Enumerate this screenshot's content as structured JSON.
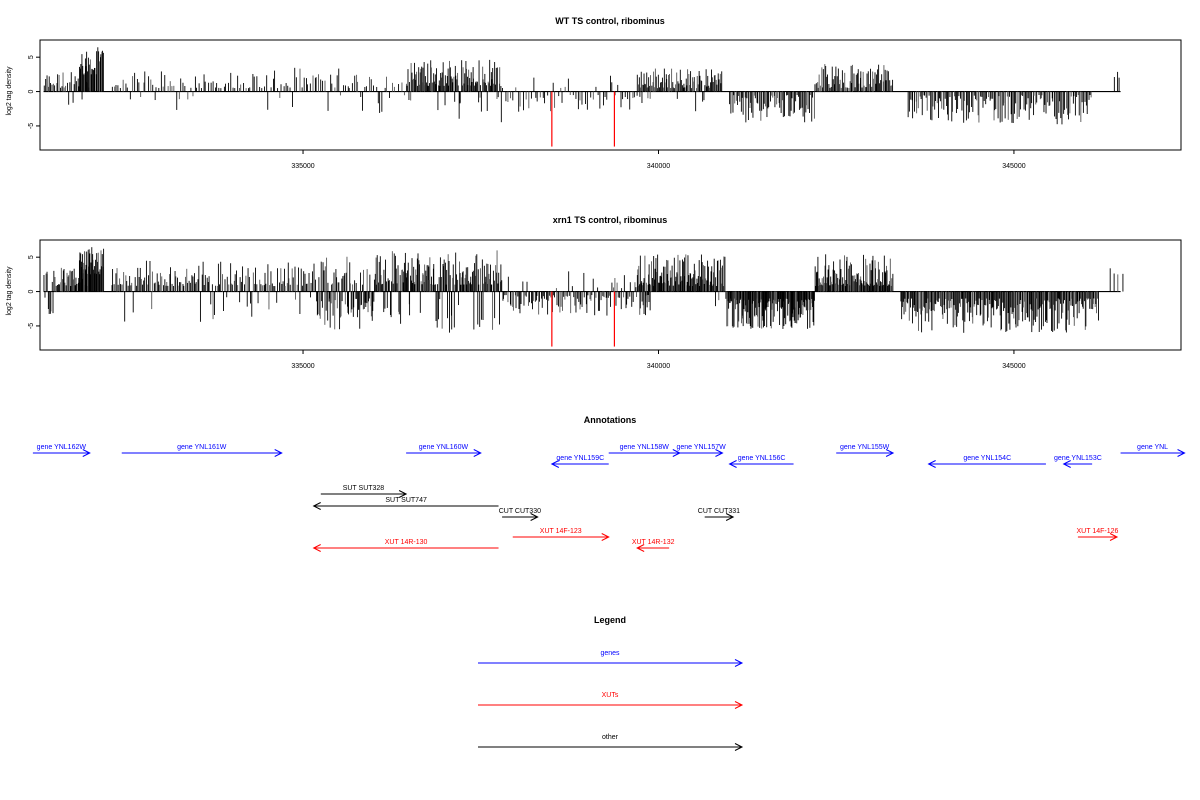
{
  "chart_data": [
    {
      "type": "bar",
      "title": "WT TS control, ribominus",
      "ylabel": "log2 tag density",
      "xlabel": "",
      "xlim": [
        331300,
        347350
      ],
      "ylim": [
        -8.5,
        7.5
      ],
      "x_ticks": [
        335000,
        340000,
        345000
      ],
      "x_tick_labels": [
        "335000",
        "340000",
        "345000"
      ],
      "y_ticks": [
        -5,
        0,
        5
      ],
      "y_tick_labels": [
        "-5",
        "0",
        "5"
      ],
      "grid": false,
      "colors": {
        "bars": "#000000",
        "highlight": "#ff0000"
      },
      "highlight_positions": [
        338500,
        339380
      ],
      "highlight_values": [
        -8.0,
        -8.0
      ],
      "segments": [
        {
          "x0": 331350,
          "x1": 332000,
          "count": 34,
          "lo": 0.5,
          "hi": 3.0,
          "p": 0.05
        },
        {
          "x0": 331850,
          "x1": 332200,
          "count": 30,
          "lo": 2.5,
          "hi": 6.5,
          "p": 0.0
        },
        {
          "x0": 332300,
          "x1": 334500,
          "count": 70,
          "lo": 0.5,
          "hi": 3.0,
          "p": 0.08
        },
        {
          "x0": 334500,
          "x1": 336200,
          "count": 55,
          "lo": 0.5,
          "hi": 3.5,
          "p": 0.2
        },
        {
          "x0": 336200,
          "x1": 336450,
          "count": 6,
          "lo": 0.5,
          "hi": 1.5,
          "p": 0.4
        },
        {
          "x0": 336450,
          "x1": 337800,
          "count": 120,
          "lo": 0.8,
          "hi": 4.8,
          "p": 0.08
        },
        {
          "x0": 337800,
          "x1": 339900,
          "count": 60,
          "lo": 0.5,
          "hi": 3.0,
          "p": 0.8
        },
        {
          "x0": 339700,
          "x1": 340900,
          "count": 90,
          "lo": 0.5,
          "hi": 3.5,
          "p": 0.05
        },
        {
          "x0": 341000,
          "x1": 342200,
          "count": 70,
          "lo": 0.5,
          "hi": 4.5,
          "p": 1.0
        },
        {
          "x0": 342200,
          "x1": 343300,
          "count": 75,
          "lo": 0.5,
          "hi": 4.0,
          "p": 0.0
        },
        {
          "x0": 343500,
          "x1": 346100,
          "count": 140,
          "lo": 0.5,
          "hi": 4.8,
          "p": 1.0
        },
        {
          "x0": 346400,
          "x1": 346500,
          "count": 3,
          "lo": 2.0,
          "hi": 3.0,
          "p": 0.0
        }
      ]
    },
    {
      "type": "bar",
      "title": "xrn1 TS control, ribominus",
      "ylabel": "log2 tag density",
      "xlabel": "",
      "xlim": [
        331300,
        347350
      ],
      "ylim": [
        -8.5,
        7.5
      ],
      "x_ticks": [
        335000,
        340000,
        345000
      ],
      "x_tick_labels": [
        "335000",
        "340000",
        "345000"
      ],
      "y_ticks": [
        -5,
        0,
        5
      ],
      "y_tick_labels": [
        "-5",
        "0",
        "5"
      ],
      "grid": false,
      "colors": {
        "bars": "#000000",
        "highlight": "#ff0000"
      },
      "highlight_positions": [
        338500,
        339380
      ],
      "highlight_values": [
        -8.0,
        -8.0
      ],
      "segments": [
        {
          "x0": 331350,
          "x1": 332000,
          "count": 50,
          "lo": 0.8,
          "hi": 3.5,
          "p": 0.08
        },
        {
          "x0": 331850,
          "x1": 332200,
          "count": 40,
          "lo": 2.5,
          "hi": 6.5,
          "p": 0.0
        },
        {
          "x0": 332300,
          "x1": 335200,
          "count": 160,
          "lo": 0.8,
          "hi": 4.5,
          "p": 0.12
        },
        {
          "x0": 335200,
          "x1": 336000,
          "count": 80,
          "lo": 1.0,
          "hi": 5.5,
          "p": 0.65
        },
        {
          "x0": 336000,
          "x1": 337800,
          "count": 170,
          "lo": 1.0,
          "hi": 6.0,
          "p": 0.15
        },
        {
          "x0": 337800,
          "x1": 339900,
          "count": 120,
          "lo": 0.5,
          "hi": 3.5,
          "p": 0.9
        },
        {
          "x0": 339700,
          "x1": 340950,
          "count": 120,
          "lo": 0.8,
          "hi": 5.5,
          "p": 0.03
        },
        {
          "x0": 340950,
          "x1": 342200,
          "count": 140,
          "lo": 1.0,
          "hi": 5.5,
          "p": 1.0
        },
        {
          "x0": 342200,
          "x1": 343300,
          "count": 110,
          "lo": 0.8,
          "hi": 5.5,
          "p": 0.0
        },
        {
          "x0": 343400,
          "x1": 346200,
          "count": 220,
          "lo": 1.0,
          "hi": 6.0,
          "p": 1.0
        },
        {
          "x0": 346350,
          "x1": 346550,
          "count": 4,
          "lo": 2.5,
          "hi": 3.5,
          "p": 0.0
        }
      ]
    }
  ],
  "annotations": {
    "title": "Annotations",
    "xlim": [
      331300,
      347350
    ],
    "tracks": [
      {
        "label": "gene YNL162W",
        "start": 331200,
        "end": 332000,
        "strand": "+",
        "row": 0,
        "kind": "gene"
      },
      {
        "label": "gene YNL161W",
        "start": 332450,
        "end": 334700,
        "strand": "+",
        "row": 0,
        "kind": "gene"
      },
      {
        "label": "gene YNL160W",
        "start": 336450,
        "end": 337500,
        "strand": "+",
        "row": 0,
        "kind": "gene"
      },
      {
        "label": "gene YNL159C",
        "start": 338500,
        "end": 339300,
        "strand": "-",
        "row": 1,
        "kind": "gene"
      },
      {
        "label": "gene YNL158W",
        "start": 339300,
        "end": 340300,
        "strand": "+",
        "row": 0,
        "kind": "gene"
      },
      {
        "label": "gene YNL157W",
        "start": 340300,
        "end": 340900,
        "strand": "+",
        "row": 0,
        "kind": "gene"
      },
      {
        "label": "gene YNL156C",
        "start": 341000,
        "end": 341900,
        "strand": "-",
        "row": 1,
        "kind": "gene"
      },
      {
        "label": "gene YNL155W",
        "start": 342500,
        "end": 343300,
        "strand": "+",
        "row": 0,
        "kind": "gene"
      },
      {
        "label": "gene YNL154C",
        "start": 343800,
        "end": 345450,
        "strand": "-",
        "row": 1,
        "kind": "gene"
      },
      {
        "label": "gene YNL153C",
        "start": 345700,
        "end": 346100,
        "strand": "-",
        "row": 1,
        "kind": "gene"
      },
      {
        "label": "gene YNL",
        "start": 346500,
        "end": 347400,
        "strand": "+",
        "row": 0,
        "kind": "gene"
      },
      {
        "label": "SUT SUT328",
        "start": 335250,
        "end": 336450,
        "strand": "+",
        "row": 2,
        "kind": "other"
      },
      {
        "label": "SUT SUT747",
        "start": 335150,
        "end": 337750,
        "strand": "-",
        "row": 3,
        "kind": "other"
      },
      {
        "label": "CUT CUT330",
        "start": 337800,
        "end": 338300,
        "strand": "+",
        "row": 4,
        "kind": "other"
      },
      {
        "label": "CUT CUT331",
        "start": 340650,
        "end": 341050,
        "strand": "+",
        "row": 4,
        "kind": "other"
      },
      {
        "label": "XUT 14F-123",
        "start": 337950,
        "end": 339300,
        "strand": "+",
        "row": 5,
        "kind": "xut"
      },
      {
        "label": "XUT 14R-130",
        "start": 335150,
        "end": 337750,
        "strand": "-",
        "row": 6,
        "kind": "xut"
      },
      {
        "label": "XUT 14R-132",
        "start": 339700,
        "end": 340150,
        "strand": "-",
        "row": 6,
        "kind": "xut"
      },
      {
        "label": "XUT 14F-126",
        "start": 345900,
        "end": 346450,
        "strand": "+",
        "row": 5,
        "kind": "xut"
      }
    ]
  },
  "legend": {
    "title": "Legend",
    "entries": [
      {
        "label": "genes",
        "color": "#0000ff"
      },
      {
        "label": "XUTs",
        "color": "#ff0000"
      },
      {
        "label": "other",
        "color": "#000000"
      }
    ]
  },
  "kind_colors": {
    "gene": "#0000ff",
    "xut": "#ff0000",
    "other": "#000000"
  }
}
